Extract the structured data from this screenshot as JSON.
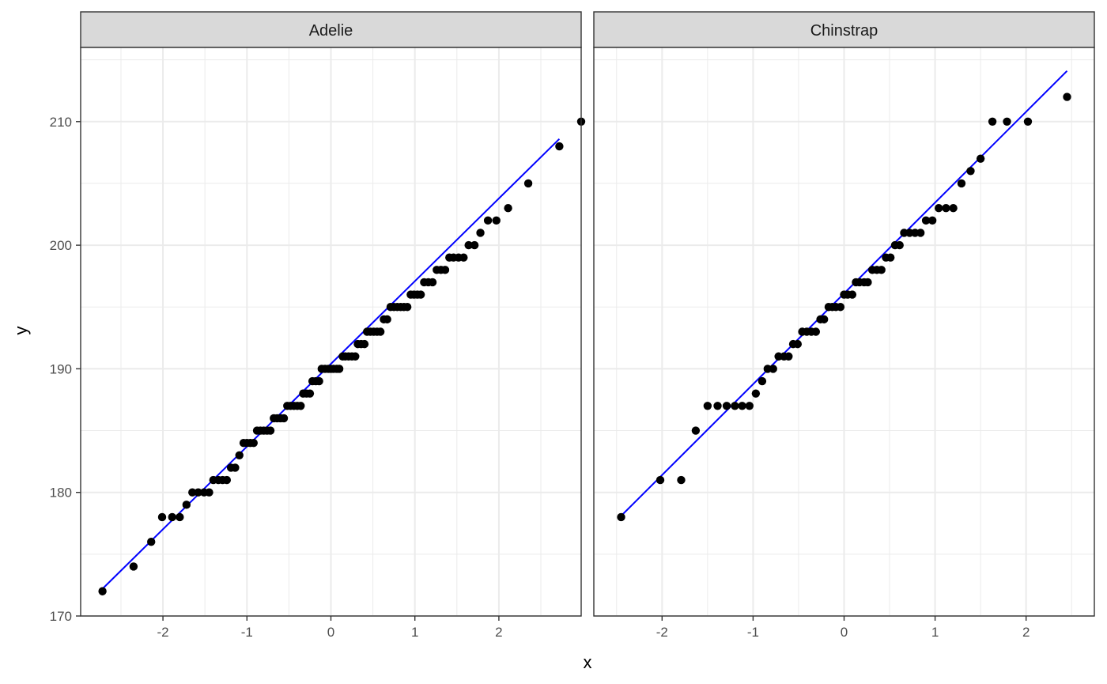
{
  "chart_data": {
    "type": "scatter",
    "subtype": "qq-plot-faceted",
    "xlabel": "x",
    "ylabel": "y",
    "ylim": [
      170,
      216
    ],
    "yticks": [
      170,
      180,
      190,
      200,
      210
    ],
    "xticks": [
      -2,
      -1,
      0,
      1,
      2
    ],
    "grid": true,
    "theme": "bw",
    "point_color": "#000000",
    "line_color": "#0000ff",
    "panels": [
      {
        "strip": "Adelie",
        "xlim": [
          -2.98,
          2.98
        ],
        "points": [
          [
            -2.72,
            172
          ],
          [
            -2.35,
            174
          ],
          [
            -2.14,
            176
          ],
          [
            -2.01,
            178
          ],
          [
            -1.89,
            178
          ],
          [
            -1.8,
            178
          ],
          [
            -1.72,
            179
          ],
          [
            -1.65,
            180
          ],
          [
            -1.58,
            180
          ],
          [
            -1.51,
            180
          ],
          [
            -1.45,
            180
          ],
          [
            -1.4,
            181
          ],
          [
            -1.34,
            181
          ],
          [
            -1.29,
            181
          ],
          [
            -1.24,
            181
          ],
          [
            -1.19,
            182
          ],
          [
            -1.14,
            182
          ],
          [
            -1.09,
            183
          ],
          [
            -1.04,
            184
          ],
          [
            -1.0,
            184
          ],
          [
            -0.96,
            184
          ],
          [
            -0.92,
            184
          ],
          [
            -0.88,
            185
          ],
          [
            -0.84,
            185
          ],
          [
            -0.8,
            185
          ],
          [
            -0.76,
            185
          ],
          [
            -0.72,
            185
          ],
          [
            -0.68,
            186
          ],
          [
            -0.64,
            186
          ],
          [
            -0.6,
            186
          ],
          [
            -0.56,
            186
          ],
          [
            -0.52,
            187
          ],
          [
            -0.48,
            187
          ],
          [
            -0.44,
            187
          ],
          [
            -0.4,
            187
          ],
          [
            -0.36,
            187
          ],
          [
            -0.33,
            188
          ],
          [
            -0.29,
            188
          ],
          [
            -0.25,
            188
          ],
          [
            -0.22,
            189
          ],
          [
            -0.18,
            189
          ],
          [
            -0.14,
            189
          ],
          [
            -0.11,
            190
          ],
          [
            -0.07,
            190
          ],
          [
            -0.03,
            190
          ],
          [
            0.0,
            190
          ],
          [
            0.03,
            190
          ],
          [
            0.07,
            190
          ],
          [
            0.1,
            190
          ],
          [
            0.14,
            191
          ],
          [
            0.17,
            191
          ],
          [
            0.21,
            191
          ],
          [
            0.25,
            191
          ],
          [
            0.29,
            191
          ],
          [
            0.32,
            192
          ],
          [
            0.36,
            192
          ],
          [
            0.4,
            192
          ],
          [
            0.43,
            193
          ],
          [
            0.47,
            193
          ],
          [
            0.51,
            193
          ],
          [
            0.55,
            193
          ],
          [
            0.59,
            193
          ],
          [
            0.63,
            194
          ],
          [
            0.67,
            194
          ],
          [
            0.71,
            195
          ],
          [
            0.75,
            195
          ],
          [
            0.79,
            195
          ],
          [
            0.83,
            195
          ],
          [
            0.87,
            195
          ],
          [
            0.91,
            195
          ],
          [
            0.95,
            196
          ],
          [
            0.99,
            196
          ],
          [
            1.03,
            196
          ],
          [
            1.07,
            196
          ],
          [
            1.11,
            197
          ],
          [
            1.16,
            197
          ],
          [
            1.21,
            197
          ],
          [
            1.26,
            198
          ],
          [
            1.31,
            198
          ],
          [
            1.36,
            198
          ],
          [
            1.41,
            199
          ],
          [
            1.46,
            199
          ],
          [
            1.52,
            199
          ],
          [
            1.58,
            199
          ],
          [
            1.64,
            200
          ],
          [
            1.71,
            200
          ],
          [
            1.78,
            201
          ],
          [
            1.87,
            202
          ],
          [
            1.97,
            202
          ],
          [
            2.11,
            203
          ],
          [
            2.35,
            205
          ],
          [
            2.72,
            208
          ],
          [
            2.98,
            210
          ]
        ],
        "line": {
          "x": [
            -2.72,
            2.72
          ],
          "y": [
            172.2,
            208.6
          ]
        }
      },
      {
        "strip": "Chinstrap",
        "xlim": [
          -2.75,
          2.75
        ],
        "points": [
          [
            -2.45,
            178
          ],
          [
            -2.02,
            181
          ],
          [
            -1.79,
            181
          ],
          [
            -1.63,
            185
          ],
          [
            -1.5,
            187
          ],
          [
            -1.39,
            187
          ],
          [
            -1.29,
            187
          ],
          [
            -1.2,
            187
          ],
          [
            -1.12,
            187
          ],
          [
            -1.04,
            187
          ],
          [
            -0.97,
            188
          ],
          [
            -0.9,
            189
          ],
          [
            -0.84,
            190
          ],
          [
            -0.78,
            190
          ],
          [
            -0.72,
            191
          ],
          [
            -0.66,
            191
          ],
          [
            -0.61,
            191
          ],
          [
            -0.56,
            192
          ],
          [
            -0.51,
            192
          ],
          [
            -0.46,
            193
          ],
          [
            -0.41,
            193
          ],
          [
            -0.36,
            193
          ],
          [
            -0.31,
            193
          ],
          [
            -0.26,
            194
          ],
          [
            -0.22,
            194
          ],
          [
            -0.17,
            195
          ],
          [
            -0.13,
            195
          ],
          [
            -0.09,
            195
          ],
          [
            -0.04,
            195
          ],
          [
            0.0,
            196
          ],
          [
            0.04,
            196
          ],
          [
            0.09,
            196
          ],
          [
            0.13,
            197
          ],
          [
            0.17,
            197
          ],
          [
            0.22,
            197
          ],
          [
            0.26,
            197
          ],
          [
            0.31,
            198
          ],
          [
            0.36,
            198
          ],
          [
            0.41,
            198
          ],
          [
            0.46,
            199
          ],
          [
            0.51,
            199
          ],
          [
            0.56,
            200
          ],
          [
            0.61,
            200
          ],
          [
            0.66,
            201
          ],
          [
            0.72,
            201
          ],
          [
            0.78,
            201
          ],
          [
            0.84,
            201
          ],
          [
            0.9,
            202
          ],
          [
            0.97,
            202
          ],
          [
            1.04,
            203
          ],
          [
            1.12,
            203
          ],
          [
            1.2,
            203
          ],
          [
            1.29,
            205
          ],
          [
            1.39,
            206
          ],
          [
            1.5,
            207
          ],
          [
            1.63,
            210
          ],
          [
            1.79,
            210
          ],
          [
            2.02,
            210
          ],
          [
            2.45,
            212
          ]
        ],
        "line": {
          "x": [
            -2.45,
            2.45
          ],
          "y": [
            178.1,
            214.1
          ]
        }
      }
    ]
  }
}
